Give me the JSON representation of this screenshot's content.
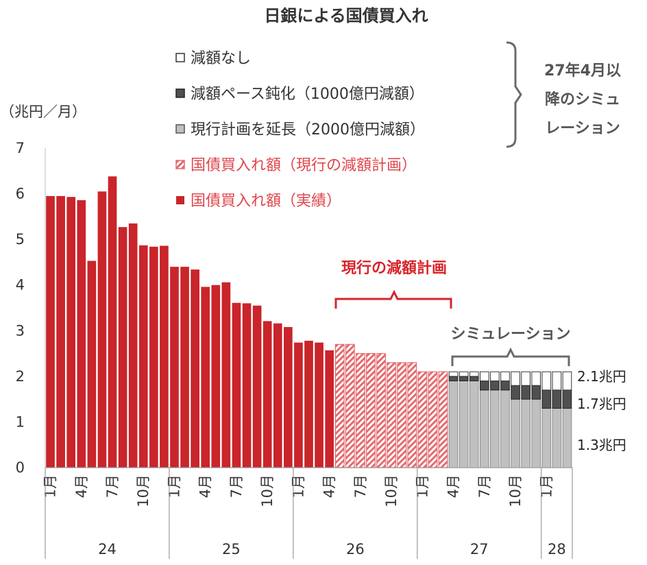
{
  "chart_data": {
    "type": "bar",
    "title": "日銀による国債買入れ",
    "ylabel": "（兆円／月）",
    "ylim": [
      0,
      7
    ],
    "yticks": [
      "0",
      "1",
      "2",
      "3",
      "4",
      "5",
      "6",
      "7"
    ],
    "actual_values": [
      5.95,
      5.95,
      5.93,
      5.86,
      4.53,
      6.05,
      6.38,
      5.27,
      5.35,
      4.87,
      4.84,
      4.86,
      4.4,
      4.4,
      4.34,
      3.96,
      4.0,
      4.06,
      3.61,
      3.6,
      3.55,
      3.21,
      3.16,
      3.08,
      2.74,
      2.78,
      2.74,
      2.57
    ],
    "plan_values": [
      2.7,
      2.7,
      2.5,
      2.5,
      2.5,
      2.3,
      2.3,
      2.3,
      2.1,
      2.1,
      2.1
    ],
    "simulation": [
      {
        "base": 1.9,
        "slow": 0.1,
        "none": 0.1
      },
      {
        "base": 1.9,
        "slow": 0.1,
        "none": 0.1
      },
      {
        "base": 1.9,
        "slow": 0.1,
        "none": 0.1
      },
      {
        "base": 1.7,
        "slow": 0.2,
        "none": 0.2
      },
      {
        "base": 1.7,
        "slow": 0.2,
        "none": 0.2
      },
      {
        "base": 1.7,
        "slow": 0.2,
        "none": 0.2
      },
      {
        "base": 1.5,
        "slow": 0.3,
        "none": 0.3
      },
      {
        "base": 1.5,
        "slow": 0.3,
        "none": 0.3
      },
      {
        "base": 1.5,
        "slow": 0.3,
        "none": 0.3
      },
      {
        "base": 1.3,
        "slow": 0.4,
        "none": 0.4
      },
      {
        "base": 1.3,
        "slow": 0.4,
        "none": 0.4
      },
      {
        "base": 1.3,
        "slow": 0.4,
        "none": 0.4
      }
    ],
    "month_labels": [
      "1月",
      "4月",
      "7月",
      "10月",
      "1月",
      "4月",
      "7月",
      "10月",
      "1月",
      "4月",
      "7月",
      "10月",
      "1月",
      "4月",
      "7月",
      "10月",
      "1月"
    ],
    "year_labels": [
      "24",
      "25",
      "26",
      "27",
      "28"
    ],
    "legend": [
      "減額なし",
      "減額ペース鈍化（1000億円減額）",
      "現行計画を延長（2000億円減額）",
      "国債買入れ額（現行の減額計画）",
      "国債買入れ額（実績）"
    ],
    "bracket_legend_label": [
      "27年4月以",
      "降のシミュ",
      "レーション"
    ],
    "annotation_plan": "現行の減額計画",
    "annotation_sim": "シミュレーション",
    "value_labels": [
      "2.1兆円",
      "1.7兆円",
      "1.3兆円"
    ],
    "colors": {
      "actual": "#c9252b",
      "plan_stripe": "#e46a6e",
      "simulation_base": "#c0c0c0",
      "simulation_slow": "#505050",
      "simulation_none": "#ffffff",
      "bracket_red": "#d8242a",
      "bracket_grey": "#6a6a6a"
    }
  }
}
